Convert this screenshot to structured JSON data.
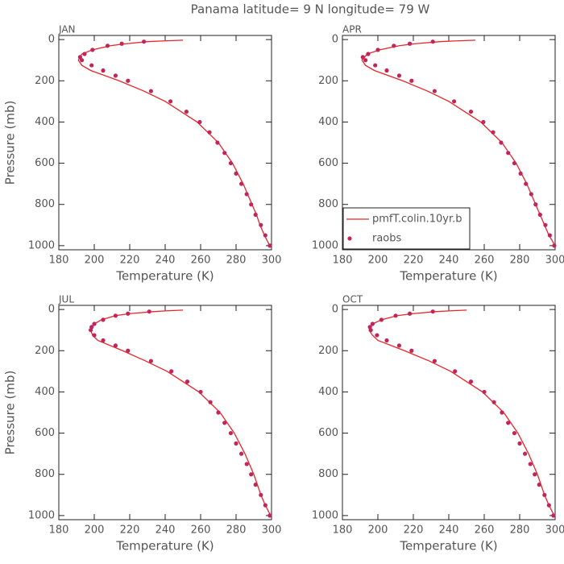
{
  "title": "Panama  latitude= 9 N longitude= 79 W",
  "chart_data": [
    {
      "type": "line",
      "subtitle": "JAN",
      "xlabel": "Temperature (K)",
      "ylabel": "Pressure (mb)",
      "xlim": [
        180,
        300
      ],
      "xticks": [
        180,
        200,
        220,
        240,
        260,
        280,
        300
      ],
      "ylim": [
        -20,
        1020
      ],
      "yticks": [
        0,
        200,
        400,
        600,
        800,
        1000
      ],
      "y_inverted": true,
      "series": [
        {
          "style": "line",
          "color": "#e8262a",
          "x": [
            250,
            238,
            230,
            218,
            209,
            199,
            193,
            191,
            193,
            198,
            214,
            228,
            240,
            258,
            270,
            278,
            284,
            289,
            291.5,
            293.5,
            296,
            299
          ],
          "y": [
            3,
            7,
            10,
            20,
            30,
            50,
            70,
            100,
            125,
            150,
            200,
            250,
            300,
            400,
            500,
            600,
            700,
            800,
            850,
            900,
            950,
            1000
          ]
        },
        {
          "style": "points",
          "color": "#c2245c",
          "x": [
            299,
            296.5,
            294,
            291,
            288.5,
            286,
            283,
            280,
            277,
            273.5,
            269.5,
            265,
            259.5,
            252,
            243,
            232,
            219,
            212,
            205,
            198.5,
            193,
            192,
            194.5,
            199,
            207.5,
            215.5,
            228
          ],
          "y": [
            1000,
            950,
            900,
            850,
            800,
            750,
            700,
            650,
            600,
            550,
            500,
            450,
            400,
            350,
            300,
            250,
            200,
            175,
            150,
            125,
            100,
            85,
            70,
            50,
            30,
            20,
            10
          ]
        }
      ]
    },
    {
      "type": "line",
      "subtitle": "APR",
      "xlabel": "Temperature (K)",
      "xlim": [
        180,
        300
      ],
      "xticks": [
        180,
        200,
        220,
        240,
        260,
        280,
        300
      ],
      "ylim": [
        -20,
        1020
      ],
      "yticks": [
        0,
        200,
        400,
        600,
        800,
        1000
      ],
      "y_inverted": true,
      "legend": "lower left",
      "series": [
        {
          "name": "pmfT.colin.10yr.b",
          "style": "line",
          "color": "#e8262a",
          "x": [
            255,
            243,
            235,
            221,
            212,
            201,
            194,
            191,
            193,
            198,
            214,
            228,
            240,
            258,
            270,
            278,
            284,
            289,
            291.5,
            294,
            296.5,
            300
          ],
          "y": [
            3,
            7,
            10,
            20,
            30,
            50,
            70,
            100,
            125,
            150,
            200,
            250,
            300,
            400,
            500,
            600,
            700,
            800,
            850,
            900,
            950,
            1000
          ]
        },
        {
          "name": "raobs",
          "style": "points",
          "color": "#c2245c",
          "x": [
            299.5,
            297,
            294.5,
            291.5,
            289,
            286.5,
            283.5,
            280.5,
            277,
            273.5,
            269.5,
            265,
            259.5,
            252.5,
            243,
            232,
            219,
            212,
            205,
            198.5,
            193,
            191.5,
            194.5,
            200,
            209,
            218,
            231
          ],
          "y": [
            1000,
            950,
            900,
            850,
            800,
            750,
            700,
            650,
            600,
            550,
            500,
            450,
            400,
            350,
            300,
            250,
            200,
            175,
            150,
            125,
            100,
            85,
            70,
            50,
            30,
            20,
            10
          ]
        }
      ]
    },
    {
      "type": "line",
      "subtitle": "JUL",
      "xlabel": "Temperature (K)",
      "ylabel": "Pressure (mb)",
      "xlim": [
        180,
        300
      ],
      "xticks": [
        180,
        200,
        220,
        240,
        260,
        280,
        300
      ],
      "ylim": [
        -20,
        1020
      ],
      "yticks": [
        0,
        200,
        400,
        600,
        800,
        1000
      ],
      "y_inverted": true,
      "series": [
        {
          "style": "line",
          "color": "#e8262a",
          "x": [
            250,
            240,
            234,
            220,
            212,
            204,
            200,
            198,
            199,
            202,
            216,
            229,
            241,
            259,
            271,
            279,
            285,
            290,
            292,
            294,
            296.5,
            299.5
          ],
          "y": [
            3,
            7,
            10,
            20,
            30,
            50,
            70,
            100,
            125,
            150,
            200,
            250,
            300,
            400,
            500,
            600,
            700,
            800,
            850,
            900,
            950,
            1000
          ]
        },
        {
          "style": "points",
          "color": "#c2245c",
          "x": [
            299,
            296.5,
            294,
            291,
            288.5,
            286,
            283,
            280,
            277,
            273.5,
            270,
            265.5,
            260,
            252.5,
            243.5,
            232,
            219,
            212,
            205,
            200,
            198,
            198.5,
            200,
            205,
            212,
            219,
            231
          ],
          "y": [
            1000,
            950,
            900,
            850,
            800,
            750,
            700,
            650,
            600,
            550,
            500,
            450,
            400,
            350,
            300,
            250,
            200,
            175,
            150,
            125,
            100,
            85,
            70,
            50,
            30,
            20,
            10
          ]
        }
      ]
    },
    {
      "type": "line",
      "subtitle": "OCT",
      "xlabel": "Temperature (K)",
      "xlim": [
        180,
        300
      ],
      "xticks": [
        180,
        200,
        220,
        240,
        260,
        280,
        300
      ],
      "ylim": [
        -20,
        1020
      ],
      "yticks": [
        0,
        200,
        400,
        600,
        800,
        1000
      ],
      "y_inverted": true,
      "series": [
        {
          "style": "line",
          "color": "#e8262a",
          "x": [
            250,
            240,
            233,
            220,
            211,
            202,
            197,
            195,
            197,
            200,
            215,
            229,
            241,
            259,
            271,
            279,
            285,
            290,
            292,
            294,
            296.5,
            299.5
          ],
          "y": [
            3,
            7,
            10,
            20,
            30,
            50,
            70,
            100,
            125,
            150,
            200,
            250,
            300,
            400,
            500,
            600,
            700,
            800,
            850,
            900,
            950,
            1000
          ]
        },
        {
          "style": "points",
          "color": "#c2245c",
          "x": [
            299,
            296.5,
            294,
            291,
            288.5,
            286,
            283,
            280,
            277,
            273.5,
            270,
            265.5,
            260,
            252.5,
            243.5,
            232,
            219,
            212,
            205,
            199.5,
            196,
            195.5,
            197,
            202,
            210,
            218,
            231
          ],
          "y": [
            1000,
            950,
            900,
            850,
            800,
            750,
            700,
            650,
            600,
            550,
            500,
            450,
            400,
            350,
            300,
            250,
            200,
            175,
            150,
            125,
            100,
            85,
            70,
            50,
            30,
            20,
            10
          ]
        }
      ]
    }
  ]
}
